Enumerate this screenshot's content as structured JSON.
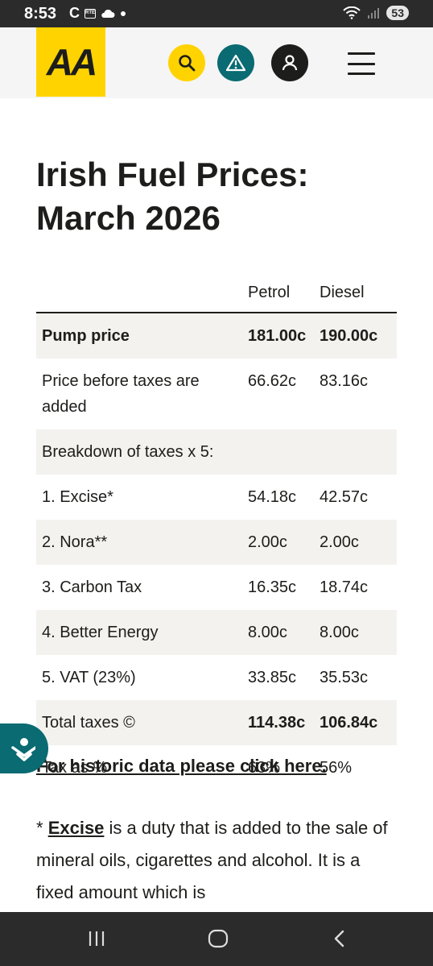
{
  "status_bar": {
    "time": "8:53",
    "carrier_icon_text": "C",
    "rte_label": "RTÉ",
    "battery": "53",
    "icons": [
      "cloud-icon",
      "dot-icon",
      "wifi-icon",
      "signal-icon"
    ]
  },
  "header": {
    "logo_text": "AA",
    "logo_color": "#ffd300",
    "search_icon": "search-icon",
    "alert_icon": "warning-icon",
    "account_icon": "person-icon",
    "menu_icon": "hamburger-icon"
  },
  "page": {
    "title": "Irish Fuel Prices: March 2026"
  },
  "table": {
    "headers": [
      "",
      "Petrol",
      "Diesel"
    ],
    "rows": [
      {
        "label": "Pump price",
        "petrol": "181.00c",
        "diesel": "190.00c"
      },
      {
        "label": "Price before taxes are added",
        "petrol": "66.62c",
        "diesel": "83.16c"
      },
      {
        "label": "Breakdown of taxes x 5:",
        "petrol": "",
        "diesel": ""
      },
      {
        "label": "1. Excise*",
        "petrol": "54.18c",
        "diesel": "42.57c"
      },
      {
        "label": "2. Nora**",
        "petrol": "2.00c",
        "diesel": "2.00c"
      },
      {
        "label": "3. Carbon Tax",
        "petrol": "16.35c",
        "diesel": "18.74c"
      },
      {
        "label": "4. Better Energy",
        "petrol": "8.00c",
        "diesel": "8.00c"
      },
      {
        "label": "5. VAT (23%)",
        "petrol": "33.85c",
        "diesel": "35.53c"
      },
      {
        "label": "Total taxes ©",
        "petrol": "114.38c",
        "diesel": "106.84c"
      },
      {
        "label": "Tax as %",
        "petrol": "63%",
        "diesel": "56%"
      }
    ]
  },
  "links": {
    "historic": "For historic data please click here."
  },
  "footnote": {
    "prefix": "* ",
    "term": "Excise",
    "text": " is a duty that is added to the sale of mineral oils, cigarettes and alcohol. It is a fixed amount which is"
  },
  "colors": {
    "brand_yellow": "#ffd300",
    "teal": "#0a6b72",
    "row_shade": "#f3f2ef"
  }
}
